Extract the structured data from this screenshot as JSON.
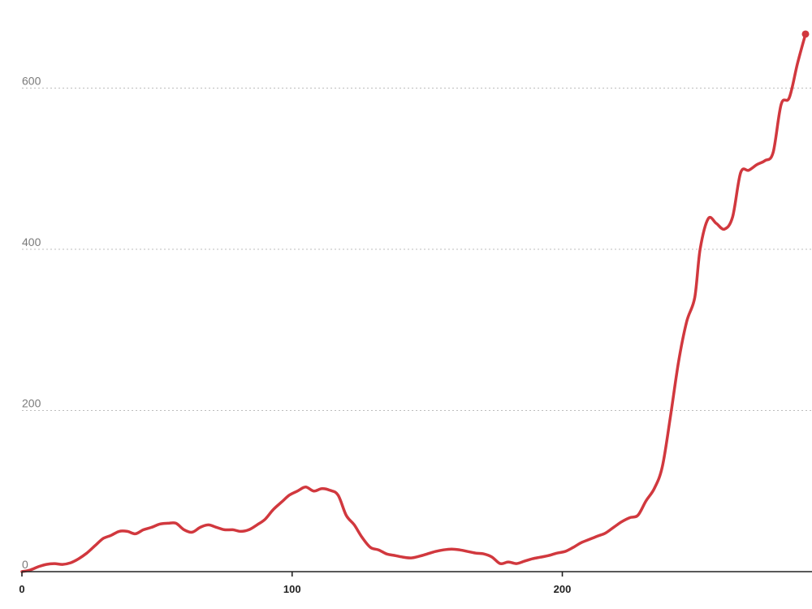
{
  "chart_data": {
    "type": "line",
    "title": "",
    "xlabel": "",
    "ylabel": "",
    "xlim": [
      0,
      290
    ],
    "ylim": [
      0,
      670
    ],
    "x_ticks": [
      {
        "value": 0,
        "label": "0"
      },
      {
        "value": 100,
        "label": "100"
      },
      {
        "value": 200,
        "label": "200"
      }
    ],
    "y_ticks": [
      {
        "value": 0,
        "label": "0"
      },
      {
        "value": 200,
        "label": "200"
      },
      {
        "value": 400,
        "label": "400"
      },
      {
        "value": 600,
        "label": "600"
      }
    ],
    "grid": "horizontal dotted",
    "colors": {
      "line": "#d1383e",
      "grid": "#bdbdbd",
      "axis": "#222222"
    },
    "series": [
      {
        "end_marker": true,
        "points": [
          [
            0,
            0
          ],
          [
            3,
            2
          ],
          [
            6,
            6
          ],
          [
            9,
            9
          ],
          [
            12,
            10
          ],
          [
            15,
            9
          ],
          [
            18,
            11
          ],
          [
            21,
            16
          ],
          [
            24,
            23
          ],
          [
            27,
            32
          ],
          [
            30,
            41
          ],
          [
            33,
            45
          ],
          [
            36,
            50
          ],
          [
            39,
            50
          ],
          [
            42,
            47
          ],
          [
            45,
            52
          ],
          [
            48,
            55
          ],
          [
            51,
            59
          ],
          [
            54,
            60
          ],
          [
            57,
            60
          ],
          [
            60,
            52
          ],
          [
            63,
            49
          ],
          [
            66,
            55
          ],
          [
            69,
            58
          ],
          [
            72,
            55
          ],
          [
            75,
            52
          ],
          [
            78,
            52
          ],
          [
            81,
            50
          ],
          [
            84,
            52
          ],
          [
            87,
            58
          ],
          [
            90,
            65
          ],
          [
            93,
            77
          ],
          [
            96,
            86
          ],
          [
            99,
            95
          ],
          [
            102,
            100
          ],
          [
            105,
            105
          ],
          [
            108,
            100
          ],
          [
            111,
            103
          ],
          [
            114,
            101
          ],
          [
            117,
            95
          ],
          [
            120,
            70
          ],
          [
            123,
            58
          ],
          [
            126,
            42
          ],
          [
            129,
            30
          ],
          [
            132,
            27
          ],
          [
            135,
            22
          ],
          [
            138,
            20
          ],
          [
            141,
            18
          ],
          [
            144,
            17
          ],
          [
            147,
            19
          ],
          [
            150,
            22
          ],
          [
            153,
            25
          ],
          [
            156,
            27
          ],
          [
            159,
            28
          ],
          [
            162,
            27
          ],
          [
            165,
            25
          ],
          [
            168,
            23
          ],
          [
            171,
            22
          ],
          [
            174,
            18
          ],
          [
            177,
            10
          ],
          [
            180,
            12
          ],
          [
            183,
            10
          ],
          [
            186,
            13
          ],
          [
            189,
            16
          ],
          [
            192,
            18
          ],
          [
            195,
            20
          ],
          [
            198,
            23
          ],
          [
            201,
            25
          ],
          [
            204,
            30
          ],
          [
            207,
            36
          ],
          [
            210,
            40
          ],
          [
            213,
            44
          ],
          [
            216,
            48
          ],
          [
            219,
            55
          ],
          [
            222,
            62
          ],
          [
            225,
            67
          ],
          [
            228,
            70
          ],
          [
            231,
            88
          ],
          [
            234,
            103
          ],
          [
            237,
            130
          ],
          [
            240,
            192
          ],
          [
            243,
            260
          ],
          [
            246,
            310
          ],
          [
            249,
            340
          ],
          [
            251,
            400
          ],
          [
            254,
            438
          ],
          [
            257,
            432
          ],
          [
            260,
            425
          ],
          [
            263,
            440
          ],
          [
            266,
            495
          ],
          [
            269,
            498
          ],
          [
            272,
            505
          ],
          [
            275,
            510
          ],
          [
            278,
            520
          ],
          [
            281,
            580
          ],
          [
            284,
            588
          ],
          [
            287,
            630
          ],
          [
            290,
            667
          ]
        ]
      }
    ]
  }
}
